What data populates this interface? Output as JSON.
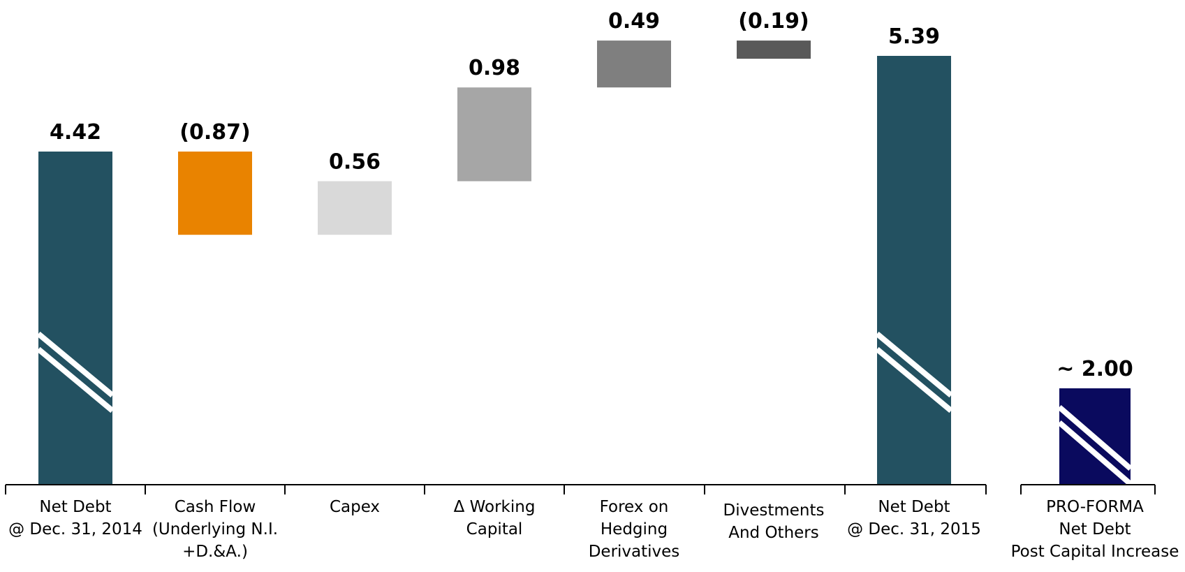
{
  "chart_data": {
    "type": "bar",
    "subtype": "waterfall",
    "categories": [
      [
        "Net Debt",
        "@ Dec. 31, 2014"
      ],
      [
        "Cash Flow",
        "(Underlying N.I.",
        "+D.&A.)"
      ],
      [
        "Capex"
      ],
      [
        "Δ Working",
        "Capital"
      ],
      [
        "Forex on",
        "Hedging",
        "Derivatives"
      ],
      [
        "Divestments",
        "And Others"
      ],
      [
        "Net Debt",
        "@ Dec. 31, 2015"
      ],
      [
        "PRO-FORMA",
        "Net Debt",
        "Post Capital Increase"
      ]
    ],
    "values": [
      4.42,
      -0.87,
      0.56,
      0.98,
      0.49,
      -0.19,
      5.39,
      2.0
    ],
    "value_labels": [
      "4.42",
      "(0.87)",
      "0.56",
      "0.98",
      "0.49",
      "(0.19)",
      "5.39",
      "~ 2.00"
    ],
    "bar_kinds": [
      "total",
      "delta",
      "delta",
      "delta",
      "delta",
      "delta",
      "total",
      "total"
    ],
    "axis_broken": [
      true,
      false,
      false,
      false,
      false,
      false,
      true,
      true
    ],
    "colors": [
      "#235161",
      "#E98300",
      "#D9D9D9",
      "#A6A6A6",
      "#7F7F7F",
      "#595959",
      "#235161",
      "#0A0A5E"
    ],
    "title": "",
    "xlabel": "",
    "ylabel": "",
    "grid": false,
    "legend": "none"
  }
}
